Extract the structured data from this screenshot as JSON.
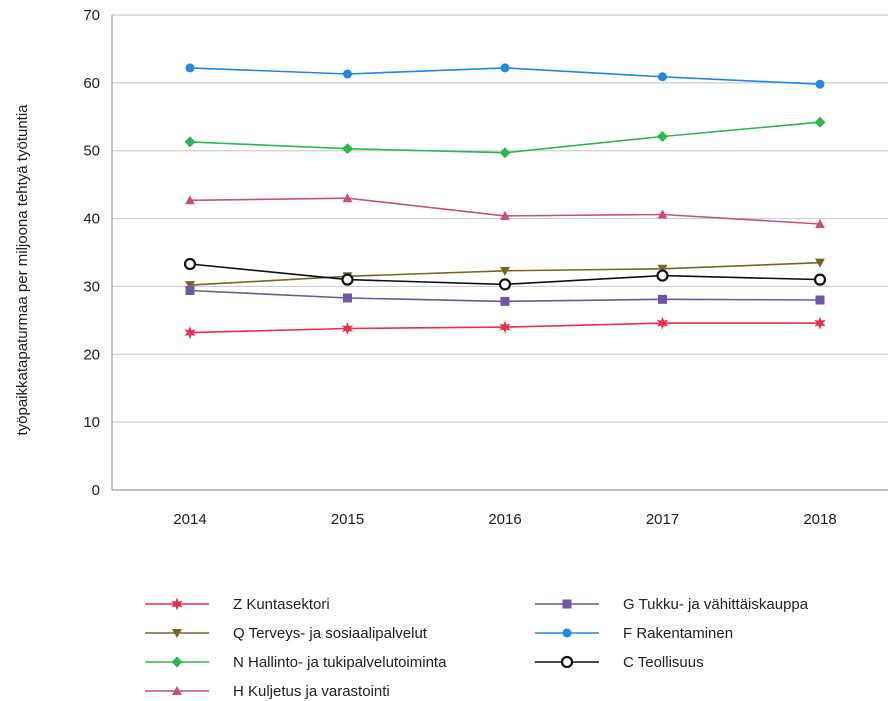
{
  "chart_data": {
    "type": "line",
    "title": "",
    "xlabel": "",
    "ylabel": "työpaikkatapaturmaa per miljoona tehtyä työtuntia",
    "x": [
      "2014",
      "2015",
      "2016",
      "2017",
      "2018"
    ],
    "ylim": [
      0,
      70
    ],
    "yticks": [
      "0",
      "10",
      "20",
      "30",
      "40",
      "50",
      "60",
      "70"
    ],
    "grid": true,
    "legend_position": "bottom",
    "series": [
      {
        "name": "Z Kuntasektori",
        "values": [
          23.2,
          23.8,
          24.0,
          24.6,
          24.6
        ],
        "color": "#e8304a",
        "marker": "star"
      },
      {
        "name": "Q Terveys- ja sosiaalipalvelut",
        "values": [
          30.2,
          31.5,
          32.3,
          32.6,
          33.5
        ],
        "color": "#7a6520",
        "marker": "triangle-down"
      },
      {
        "name": "N Hallinto- ja tukipalvelutoiminta",
        "values": [
          51.3,
          50.3,
          49.7,
          52.1,
          54.2
        ],
        "color": "#2db84a",
        "marker": "diamond"
      },
      {
        "name": "H Kuljetus ja varastointi",
        "values": [
          42.7,
          43.0,
          40.4,
          40.6,
          39.2
        ],
        "color": "#c8507a",
        "marker": "triangle-up"
      },
      {
        "name": "G Tukku- ja vähittäiskauppa",
        "values": [
          29.4,
          28.3,
          27.8,
          28.1,
          28.0
        ],
        "color": "#6f55a5",
        "marker": "square"
      },
      {
        "name": "F Rakentaminen",
        "values": [
          62.2,
          61.3,
          62.2,
          60.9,
          59.8
        ],
        "color": "#1e88e5",
        "marker": "circle"
      },
      {
        "name": "C Teollisuus",
        "values": [
          33.3,
          31.0,
          30.3,
          31.6,
          31.0
        ],
        "color": "#111111",
        "marker": "circle-open"
      }
    ]
  }
}
